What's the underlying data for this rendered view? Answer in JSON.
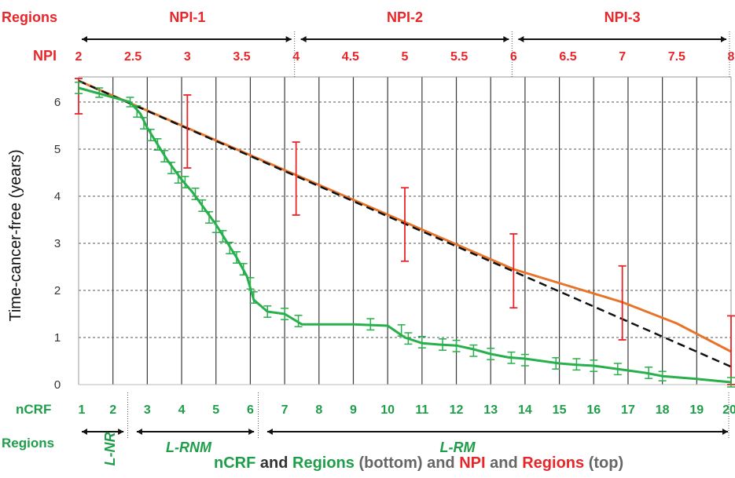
{
  "chart_data": {
    "type": "line",
    "ylabel": "Time-cancer-free (years)",
    "ylim": [
      0,
      6.5
    ],
    "y_ticks": [
      "0",
      "1",
      "2",
      "3",
      "4",
      "5",
      "6"
    ],
    "grid": "horizontal dashed, vertical solid",
    "top_axis": {
      "row_labels": {
        "regions": "Regions",
        "npi": "NPI"
      },
      "range": [
        2,
        8
      ],
      "ticks": [
        "2",
        "2.5",
        "3",
        "3.5",
        "4",
        "4.5",
        "5",
        "5.5",
        "6",
        "6.5",
        "7",
        "7.5",
        "8"
      ],
      "regions": [
        {
          "label": "NPI-1",
          "start": 2,
          "end": 4
        },
        {
          "label": "NPI-2",
          "start": 4,
          "end": 6
        },
        {
          "label": "NPI-3",
          "start": 6,
          "end": 8
        }
      ]
    },
    "bottom_axis": {
      "row_labels": {
        "ncrf": "nCRF",
        "regions": "Regions"
      },
      "range": [
        1,
        20
      ],
      "ticks": [
        "1",
        "2",
        "3",
        "4",
        "5",
        "6",
        "7",
        "8",
        "9",
        "10",
        "11",
        "12",
        "13",
        "14",
        "15",
        "16",
        "17",
        "18",
        "19",
        "20"
      ],
      "regions": [
        {
          "label": "L-NR",
          "start": 1,
          "end": 2.4
        },
        {
          "label": "L-RNM",
          "start": 2.6,
          "end": 6.2
        },
        {
          "label": "L-RM",
          "start": 6.4,
          "end": 20
        }
      ]
    },
    "series": [
      {
        "axis": "top",
        "color": "#e8742a",
        "x": [
          2,
          3,
          4,
          5,
          6,
          6.5,
          7,
          7.5,
          8
        ],
        "y": [
          6.45,
          5.45,
          4.45,
          3.45,
          2.45,
          2.1,
          1.75,
          1.3,
          0.7
        ]
      },
      {
        "axis": "top",
        "color": "#111111",
        "dashed": true,
        "x": [
          2,
          8
        ],
        "y": [
          6.45,
          0.38
        ]
      },
      {
        "axis": "bottom",
        "color": "#27b04b",
        "x": [
          1,
          1.5,
          2,
          2.5,
          2.8,
          3,
          3.3,
          3.6,
          4,
          4.3,
          4.6,
          5,
          5.3,
          5.6,
          5.9,
          6.1,
          6.5,
          7,
          7.5,
          8,
          9,
          10,
          10.5,
          11,
          11.5,
          12,
          12.5,
          13,
          13.5,
          14,
          15,
          15.5,
          16,
          16.5,
          17,
          17.5,
          18,
          19,
          20
        ],
        "y": [
          6.3,
          6.2,
          6.1,
          6.0,
          5.75,
          5.45,
          5.1,
          4.75,
          4.35,
          4.1,
          3.8,
          3.4,
          3.05,
          2.7,
          2.3,
          1.8,
          1.55,
          1.5,
          1.28,
          1.28,
          1.28,
          1.25,
          1.0,
          0.88,
          0.85,
          0.83,
          0.75,
          0.65,
          0.58,
          0.55,
          0.45,
          0.42,
          0.4,
          0.35,
          0.3,
          0.25,
          0.18,
          0.12,
          0.05
        ]
      }
    ],
    "red_error_bars": [
      {
        "x": 2,
        "y": 6.35,
        "low": 5.75,
        "high": 6.5
      },
      {
        "x": 3,
        "y": 5.4,
        "low": 4.6,
        "high": 6.15
      },
      {
        "x": 4,
        "y": 4.4,
        "low": 3.6,
        "high": 5.15
      },
      {
        "x": 5,
        "y": 3.4,
        "low": 2.62,
        "high": 4.18
      },
      {
        "x": 6,
        "y": 2.4,
        "low": 1.63,
        "high": 3.2
      },
      {
        "x": 7,
        "y": 1.75,
        "low": 0.95,
        "high": 2.52
      },
      {
        "x": 8,
        "y": 0.7,
        "low": 0,
        "high": 1.46
      }
    ],
    "green_error_bars": [
      {
        "x": 1,
        "y": 6.3,
        "e": 0.12
      },
      {
        "x": 1.6,
        "y": 6.2,
        "e": 0.1
      },
      {
        "x": 2.5,
        "y": 6.0,
        "e": 0.1
      },
      {
        "x": 2.7,
        "y": 5.8,
        "e": 0.12
      },
      {
        "x": 2.9,
        "y": 5.55,
        "e": 0.12
      },
      {
        "x": 3.1,
        "y": 5.3,
        "e": 0.12
      },
      {
        "x": 3.3,
        "y": 5.1,
        "e": 0.12
      },
      {
        "x": 3.5,
        "y": 4.85,
        "e": 0.12
      },
      {
        "x": 3.7,
        "y": 4.6,
        "e": 0.12
      },
      {
        "x": 3.9,
        "y": 4.4,
        "e": 0.12
      },
      {
        "x": 4.1,
        "y": 4.3,
        "e": 0.12
      },
      {
        "x": 4.4,
        "y": 4.05,
        "e": 0.12
      },
      {
        "x": 4.6,
        "y": 3.8,
        "e": 0.12
      },
      {
        "x": 4.8,
        "y": 3.55,
        "e": 0.12
      },
      {
        "x": 5.0,
        "y": 3.35,
        "e": 0.12
      },
      {
        "x": 5.2,
        "y": 3.15,
        "e": 0.12
      },
      {
        "x": 5.4,
        "y": 2.9,
        "e": 0.12
      },
      {
        "x": 5.6,
        "y": 2.7,
        "e": 0.12
      },
      {
        "x": 5.8,
        "y": 2.45,
        "e": 0.12
      },
      {
        "x": 6.0,
        "y": 2.15,
        "e": 0.12
      },
      {
        "x": 6.1,
        "y": 1.85,
        "e": 0.12
      },
      {
        "x": 6.5,
        "y": 1.55,
        "e": 0.12
      },
      {
        "x": 7.0,
        "y": 1.5,
        "e": 0.12
      },
      {
        "x": 7.4,
        "y": 1.35,
        "e": 0.12
      },
      {
        "x": 9.5,
        "y": 1.28,
        "e": 0.12
      },
      {
        "x": 10.4,
        "y": 1.15,
        "e": 0.12
      },
      {
        "x": 10.6,
        "y": 0.98,
        "e": 0.12
      },
      {
        "x": 11.0,
        "y": 0.9,
        "e": 0.12
      },
      {
        "x": 11.6,
        "y": 0.85,
        "e": 0.12
      },
      {
        "x": 12.0,
        "y": 0.82,
        "e": 0.12
      },
      {
        "x": 12.5,
        "y": 0.72,
        "e": 0.12
      },
      {
        "x": 13.0,
        "y": 0.65,
        "e": 0.12
      },
      {
        "x": 13.6,
        "y": 0.57,
        "e": 0.12
      },
      {
        "x": 14.0,
        "y": 0.52,
        "e": 0.12
      },
      {
        "x": 14.9,
        "y": 0.45,
        "e": 0.12
      },
      {
        "x": 15.5,
        "y": 0.43,
        "e": 0.12
      },
      {
        "x": 16.0,
        "y": 0.4,
        "e": 0.12
      },
      {
        "x": 16.7,
        "y": 0.33,
        "e": 0.12
      },
      {
        "x": 17.6,
        "y": 0.25,
        "e": 0.12
      },
      {
        "x": 18.0,
        "y": 0.18,
        "e": 0.1
      },
      {
        "x": 20.0,
        "y": 0.05,
        "e": 0.1
      }
    ],
    "caption": [
      {
        "text": "nCRF",
        "color": "#1f9e4a"
      },
      {
        "text": " and ",
        "color": "#333333"
      },
      {
        "text": "Regions",
        "color": "#1f9e4a"
      },
      {
        "text": " (bottom) and ",
        "color": "#666666"
      },
      {
        "text": "NPI",
        "color": "#e8262a"
      },
      {
        "text": " and ",
        "color": "#666666"
      },
      {
        "text": "Regions",
        "color": "#e8262a"
      },
      {
        "text": " (top)",
        "color": "#666666"
      }
    ]
  }
}
